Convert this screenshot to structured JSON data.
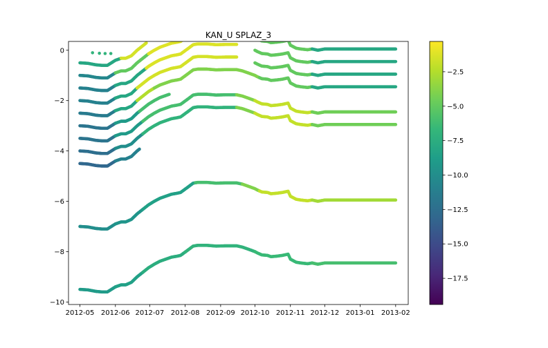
{
  "chart_data": {
    "type": "scatter",
    "title": "KAN_U SPLAZ_3",
    "xlabel": "",
    "ylabel": "",
    "x_ticks": [
      "2012-05",
      "2012-06",
      "2012-07",
      "2012-08",
      "2012-09",
      "2012-10",
      "2012-11",
      "2012-12",
      "2013-01",
      "2013-02"
    ],
    "y_ticks": [
      "0",
      "−2",
      "−4",
      "−6",
      "−8",
      "−10"
    ],
    "xlim": [
      "2012-04-21",
      "2013-02-12"
    ],
    "ylim": [
      -10.1,
      0.35
    ],
    "colorbar": {
      "colormap": "viridis",
      "range": [
        -19.4,
        -0.3
      ],
      "ticks": [
        "−2.5",
        "−5.0",
        "−7.5",
        "−10.0",
        "−12.5",
        "−15.0",
        "−17.5"
      ],
      "colors": [
        "#440154",
        "#482878",
        "#3e4989",
        "#31688e",
        "#26828e",
        "#1f9e89",
        "#35b779",
        "#6ece58",
        "#b5de2b",
        "#fde725"
      ]
    },
    "depth_profile": {
      "dates": [
        "2012-05-01",
        "2012-05-08",
        "2012-05-15",
        "2012-05-20",
        "2012-05-25",
        "2012-06-01",
        "2012-06-06",
        "2012-06-10",
        "2012-06-15",
        "2012-06-20",
        "2012-06-25",
        "2012-06-30",
        "2012-07-05",
        "2012-07-10",
        "2012-07-15",
        "2012-07-20",
        "2012-07-25",
        "2012-07-28",
        "2012-08-03",
        "2012-08-08",
        "2012-08-12",
        "2012-08-20",
        "2012-08-28",
        "2012-09-05",
        "2012-09-15",
        "2012-09-20",
        "2012-09-25",
        "2012-10-01",
        "2012-10-03",
        "2012-10-07",
        "2012-10-12",
        "2012-10-15",
        "2012-10-20",
        "2012-10-25",
        "2012-10-30",
        "2012-11-01",
        "2012-11-06",
        "2012-11-10",
        "2012-11-16",
        "2012-11-20",
        "2012-11-25",
        "2012-12-01",
        "2012-12-15",
        "2013-01-01",
        "2013-02-01"
      ],
      "offsets": [
        0,
        -0.02,
        -0.08,
        -0.1,
        -0.1,
        0.1,
        0.18,
        0.18,
        0.28,
        0.5,
        0.68,
        0.86,
        1.0,
        1.12,
        1.2,
        1.28,
        1.32,
        1.35,
        1.55,
        1.72,
        1.75,
        1.75,
        1.72,
        1.73,
        1.73,
        1.68,
        1.6,
        1.5,
        1.45,
        1.37,
        1.35,
        1.3,
        1.32,
        1.35,
        1.4,
        1.2,
        1.08,
        1.05,
        1.02,
        1.05,
        1.0,
        1.05,
        1.05,
        1.05,
        1.05
      ]
    },
    "series": [
      {
        "start_depth": -0.5,
        "segments": [
          [
            "2012-05-01",
            "2012-06-06",
            -8.0
          ],
          [
            "2012-06-06",
            "2012-06-28",
            -1.5
          ],
          [
            "2012-07-05",
            "2012-07-28",
            -0.8
          ],
          [
            "2012-08-05",
            "2012-08-20",
            -1.0
          ],
          [
            "2012-08-20",
            "2012-09-10",
            -8.0
          ],
          [
            "2012-09-10",
            "2012-09-20",
            -14.0
          ],
          [
            "2012-09-20",
            "2012-10-01",
            -6.0
          ]
        ],
        "points": [
          [
            "2012-05-12",
            -0.1,
            -7.0
          ],
          [
            "2012-05-18",
            -0.12,
            -7.0
          ],
          [
            "2012-05-23",
            -0.13,
            -7.0
          ],
          [
            "2012-05-28",
            -0.13,
            -7.0
          ]
        ]
      },
      {
        "start_depth": -1.0,
        "segments": [
          [
            "2012-05-01",
            "2012-06-01",
            -10.5
          ],
          [
            "2012-06-01",
            "2012-06-30",
            -5.0
          ],
          [
            "2012-06-30",
            "2012-09-15",
            -1.2
          ],
          [
            "2012-10-01",
            "2012-11-20",
            -5.0
          ],
          [
            "2012-11-20",
            "2013-02-01",
            -8.0
          ]
        ]
      },
      {
        "start_depth": -1.5,
        "segments": [
          [
            "2012-05-01",
            "2012-06-01",
            -11.0
          ],
          [
            "2012-06-01",
            "2012-06-28",
            -8.0
          ],
          [
            "2012-06-28",
            "2012-09-15",
            -1.3
          ],
          [
            "2012-10-01",
            "2012-11-20",
            -5.0
          ],
          [
            "2012-11-20",
            "2013-02-01",
            -8.0
          ]
        ]
      },
      {
        "start_depth": -2.0,
        "segments": [
          [
            "2012-05-01",
            "2012-06-01",
            -11.0
          ],
          [
            "2012-06-01",
            "2012-06-20",
            -8.0
          ],
          [
            "2012-06-20",
            "2012-09-15",
            -1.5
          ],
          [
            "2012-10-01",
            "2012-11-20",
            -5.0
          ],
          [
            "2012-11-20",
            "2013-02-01",
            -8.0
          ]
        ]
      },
      {
        "start_depth": -2.5,
        "segments": [
          [
            "2012-05-01",
            "2012-06-01",
            -11.5
          ],
          [
            "2012-06-01",
            "2012-06-20",
            -8.0
          ],
          [
            "2012-06-20",
            "2012-07-05",
            -2.5
          ],
          [
            "2012-07-05",
            "2012-10-05",
            -4.0
          ],
          [
            "2012-10-05",
            "2012-11-20",
            -5.0
          ],
          [
            "2012-11-20",
            "2013-02-01",
            -8.0
          ]
        ]
      },
      {
        "start_depth": -3.0,
        "segments": [
          [
            "2012-05-01",
            "2012-06-01",
            -12.0
          ],
          [
            "2012-06-01",
            "2012-06-22",
            -9.0
          ],
          [
            "2012-06-22",
            "2012-07-18",
            -6.0
          ]
        ]
      },
      {
        "start_depth": -3.5,
        "segments": [
          [
            "2012-05-01",
            "2012-06-01",
            -12.0
          ],
          [
            "2012-06-01",
            "2012-06-25",
            -9.0
          ],
          [
            "2012-06-25",
            "2012-09-15",
            -6.0
          ],
          [
            "2012-09-15",
            "2012-10-01",
            -4.0
          ],
          [
            "2012-10-01",
            "2012-11-20",
            -2.0
          ],
          [
            "2012-11-20",
            "2013-02-01",
            -4.5
          ]
        ]
      },
      {
        "start_depth": -4.0,
        "segments": [
          [
            "2012-05-01",
            "2012-06-01",
            -12.5
          ],
          [
            "2012-06-01",
            "2012-06-25",
            -10.0
          ],
          [
            "2012-06-25",
            "2012-09-15",
            -7.0
          ],
          [
            "2012-09-15",
            "2012-10-01",
            -4.0
          ],
          [
            "2012-10-01",
            "2012-11-20",
            -2.0
          ],
          [
            "2012-11-20",
            "2013-02-01",
            -4.5
          ]
        ]
      },
      {
        "start_depth": -4.5,
        "segments": [
          [
            "2012-05-01",
            "2012-06-01",
            -13.0
          ],
          [
            "2012-06-01",
            "2012-06-22",
            -11.0
          ]
        ]
      },
      {
        "start_depth": -7.0,
        "segments": [
          [
            "2012-05-01",
            "2012-06-01",
            -10.0
          ],
          [
            "2012-06-01",
            "2012-06-25",
            -9.5
          ],
          [
            "2012-06-25",
            "2012-08-10",
            -8.5
          ],
          [
            "2012-08-10",
            "2012-09-20",
            -6.0
          ],
          [
            "2012-09-20",
            "2012-10-05",
            -4.0
          ],
          [
            "2012-10-05",
            "2012-11-20",
            -2.0
          ],
          [
            "2012-11-20",
            "2013-02-01",
            -3.0
          ]
        ]
      },
      {
        "start_depth": -9.5,
        "segments": [
          [
            "2012-05-01",
            "2012-06-01",
            -9.0
          ],
          [
            "2012-06-01",
            "2012-06-25",
            -8.5
          ],
          [
            "2012-06-25",
            "2012-08-01",
            -7.5
          ],
          [
            "2012-08-01",
            "2012-10-01",
            -7.0
          ],
          [
            "2012-10-01",
            "2012-11-20",
            -6.5
          ],
          [
            "2012-11-20",
            "2013-02-01",
            -6.0
          ]
        ]
      }
    ]
  }
}
